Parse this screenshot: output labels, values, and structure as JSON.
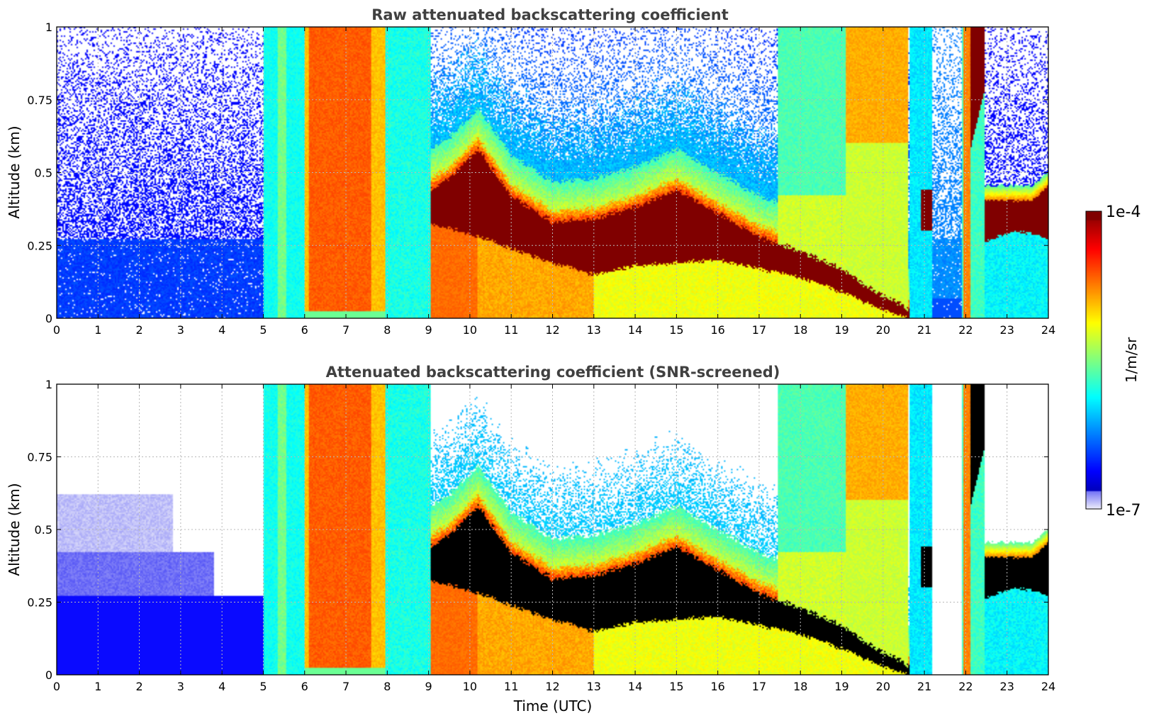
{
  "chart_data": [
    {
      "type": "heatmap",
      "title": "Raw attenuated backscattering coefficient",
      "xlabel": "",
      "ylabel": "Altitude (km)",
      "xlim": [
        0,
        24
      ],
      "ylim": [
        0,
        1
      ],
      "x_ticks": [
        "0",
        "1",
        "2",
        "3",
        "4",
        "5",
        "6",
        "7",
        "8",
        "9",
        "10",
        "11",
        "12",
        "13",
        "14",
        "15",
        "16",
        "17",
        "18",
        "19",
        "20",
        "21",
        "22",
        "23",
        "24"
      ],
      "y_ticks": [
        "0",
        "0.25",
        "0.5",
        "0.75",
        "1"
      ],
      "grid": true,
      "screened": false,
      "value_scale": "log10 of backscatter, 0 = 1e-7, 1 = 1e-4",
      "cloud_layer": {
        "time_h": [
          8.8,
          9.5,
          10.2,
          11,
          12,
          13,
          14,
          15,
          16,
          17,
          18,
          19,
          19.8,
          20.4,
          20.6
        ],
        "base_km": [
          0.33,
          0.31,
          0.28,
          0.24,
          0.19,
          0.15,
          0.18,
          0.19,
          0.2,
          0.17,
          0.14,
          0.09,
          0.04,
          0.01,
          0.0
        ],
        "top_km": [
          0.42,
          0.48,
          0.58,
          0.42,
          0.33,
          0.34,
          0.38,
          0.44,
          0.36,
          0.28,
          0.23,
          0.17,
          0.09,
          0.05,
          0.03
        ]
      }
    },
    {
      "type": "heatmap",
      "title": "Attenuated backscattering coefficient (SNR-screened)",
      "xlabel": "Time (UTC)",
      "ylabel": "Altitude (km)",
      "xlim": [
        0,
        24
      ],
      "ylim": [
        0,
        1
      ],
      "x_ticks": [
        "0",
        "1",
        "2",
        "3",
        "4",
        "5",
        "6",
        "7",
        "8",
        "9",
        "10",
        "11",
        "12",
        "13",
        "14",
        "15",
        "16",
        "17",
        "18",
        "19",
        "20",
        "21",
        "22",
        "23",
        "24"
      ],
      "y_ticks": [
        "0",
        "0.25",
        "0.5",
        "0.75",
        "1"
      ],
      "grid": true,
      "screened": true,
      "value_scale": "log10 of backscatter, 0 = 1e-7, 1 = 1e-4"
    }
  ],
  "colorbar": {
    "label": "1/m/sr",
    "max_label": "1e-4",
    "min_label": "1e-7",
    "colormap": "jet"
  }
}
